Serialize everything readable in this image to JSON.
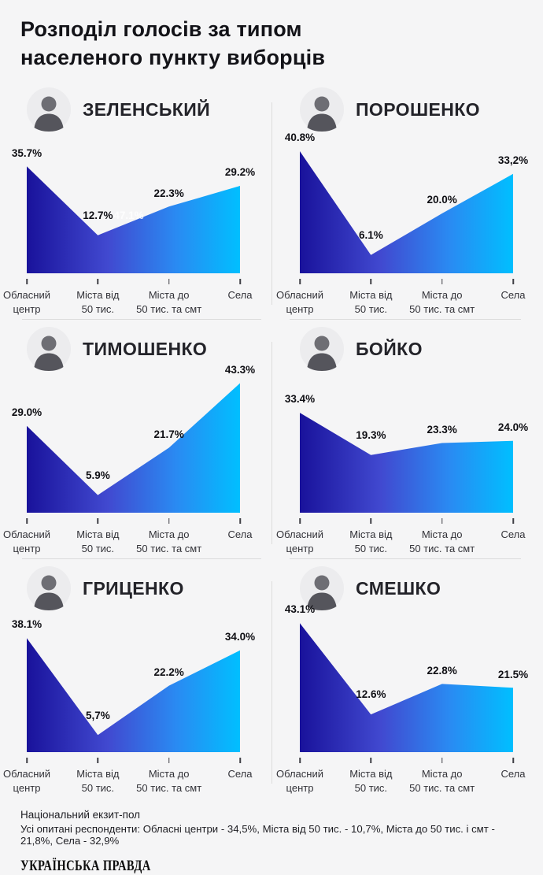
{
  "title": "Розподіл голосів за типом\nнаселеного пункту виборців",
  "chart_data": {
    "type": "area",
    "categories": [
      "Обласний\nцентр",
      "Міста від\n50 тис.",
      "Міста до\n50 тис. та смт",
      "Села"
    ],
    "xlabel": "",
    "ylabel": "",
    "ylim": [
      0,
      45
    ],
    "grid": false,
    "legend_position": "none",
    "value_suffix": "%",
    "series": [
      {
        "name": "ЗЕЛЕНСЬКИЙ",
        "values": [
          35.7,
          12.7,
          22.3,
          29.2
        ],
        "labels": [
          "35.7%",
          "12.7%",
          "22.3%",
          "29.2%"
        ],
        "ghost": {
          "text": "47.1%",
          "point": 1
        }
      },
      {
        "name": "ПОРОШЕНКО",
        "values": [
          40.8,
          6.1,
          20.0,
          33.2
        ],
        "labels": [
          "40.8%",
          "6.1%",
          "20.0%",
          "33,2%"
        ]
      },
      {
        "name": "ТИМОШЕНКО",
        "values": [
          29.0,
          5.9,
          21.7,
          43.3
        ],
        "labels": [
          "29.0%",
          "5.9%",
          "21.7%",
          "43.3%"
        ]
      },
      {
        "name": "БОЙКО",
        "values": [
          33.4,
          19.3,
          23.3,
          24.0
        ],
        "labels": [
          "33.4%",
          "19.3%",
          "23.3%",
          "24.0%"
        ]
      },
      {
        "name": "ГРИЦЕНКО",
        "values": [
          38.1,
          5.7,
          22.2,
          34.0
        ],
        "labels": [
          "38.1%",
          "5,7%",
          "22.2%",
          "34.0%"
        ]
      },
      {
        "name": "СМЕШКО",
        "values": [
          43.1,
          12.6,
          22.8,
          21.5
        ],
        "labels": [
          "43.1%",
          "12.6%",
          "22.8%",
          "21.5%"
        ]
      }
    ],
    "colors": {
      "gradient": [
        "#19129b",
        "#4149d0",
        "#2a8af2",
        "#00bfff"
      ],
      "background": "#f5f5f6",
      "divider": "#dcdcdc"
    }
  },
  "footer": {
    "source": "Національний екзит-пол",
    "respondents": "Усі опитані респонденти: Обласні центри - 34,5%, Міста від 50 тис. - 10,7%, Міста до 50 тис. і смт - 21,8%, Села - 32,9%",
    "logo": "УКРАЇНСЬКА ПРАВДА"
  }
}
